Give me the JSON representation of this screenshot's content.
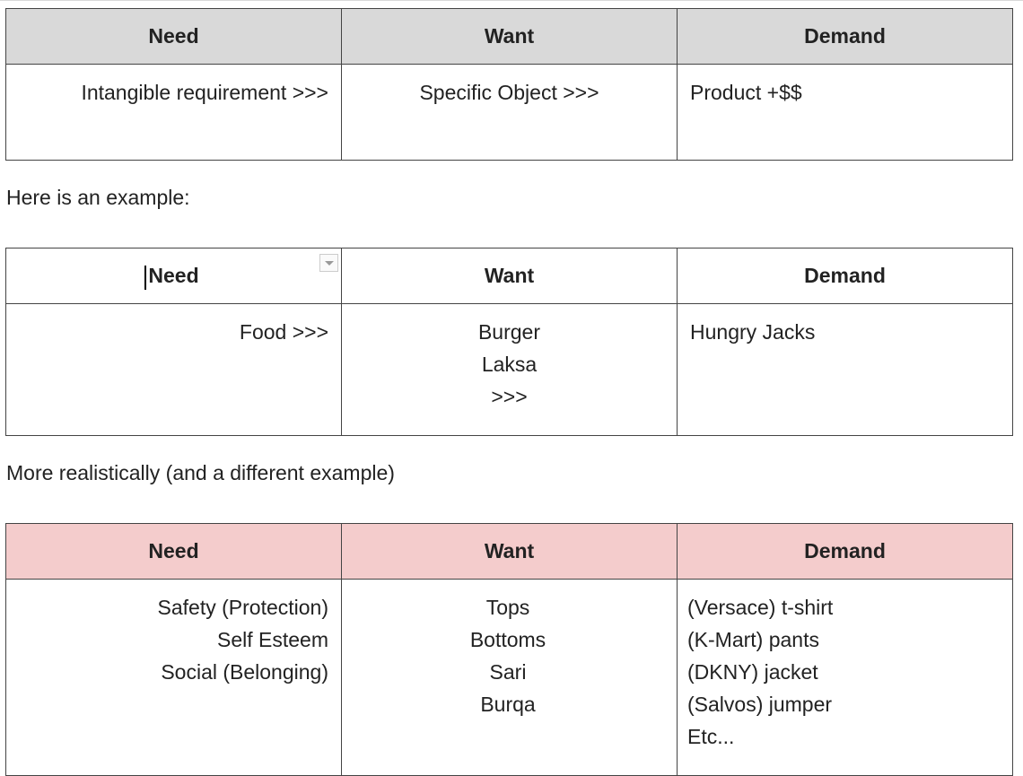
{
  "table1": {
    "headers": [
      "Need",
      "Want",
      "Demand"
    ],
    "row": [
      "Intangible requirement >>>",
      "Specific Object >>>",
      "Product +$$"
    ]
  },
  "text1": "Here is an example:",
  "table2": {
    "headers": [
      "Need",
      "Want",
      "Demand"
    ],
    "need": [
      "Food >>>"
    ],
    "want": [
      "Burger",
      "Laksa",
      ">>>"
    ],
    "demand": [
      "Hungry Jacks"
    ]
  },
  "text2": "More realistically (and a different example)",
  "table3": {
    "headers": [
      "Need",
      "Want",
      "Demand"
    ],
    "need": [
      "Safety (Protection)",
      "Self Esteem",
      "Social (Belonging)"
    ],
    "want": [
      "Tops",
      "Bottoms",
      "Sari",
      "Burqa"
    ],
    "demand": [
      "(Versace) t-shirt",
      "(K-Mart) pants",
      "(DKNY) jacket",
      "(Salvos) jumper",
      "Etc..."
    ]
  },
  "colors": {
    "header_gray": "#d9d9d9",
    "header_pink": "#f4cccc",
    "border": "#444444"
  }
}
